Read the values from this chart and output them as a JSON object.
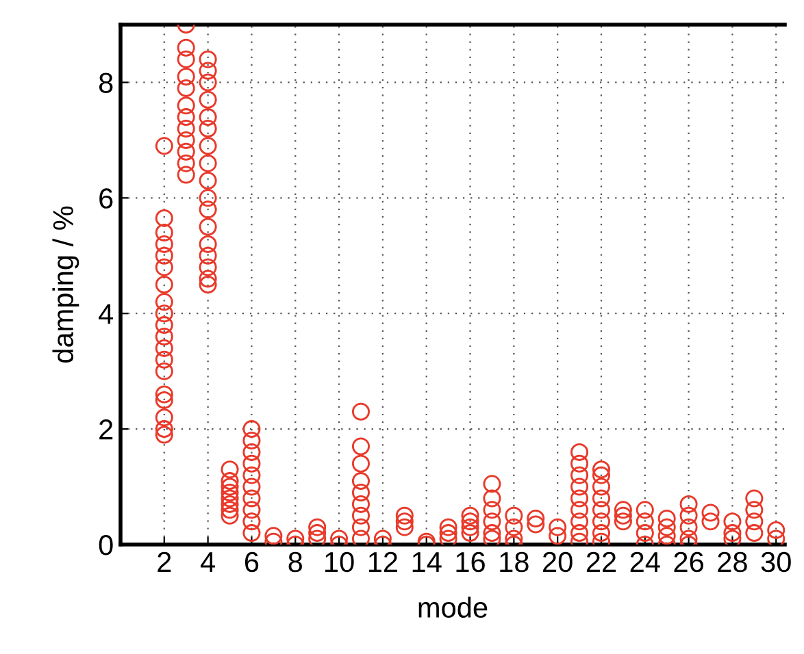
{
  "chart_data": {
    "type": "scatter",
    "xlabel": "mode",
    "ylabel": "damping / %",
    "xlim": [
      0,
      30.4
    ],
    "ylim": [
      0,
      9
    ],
    "xticks": [
      2,
      4,
      6,
      8,
      10,
      12,
      14,
      16,
      18,
      20,
      22,
      24,
      26,
      28,
      30
    ],
    "yticks": [
      0,
      2,
      4,
      6,
      8
    ],
    "grid": true,
    "marker": "circle",
    "legend": false,
    "series": [
      {
        "color": "#e8392a",
        "x": [
          2,
          2,
          2,
          2,
          2,
          2,
          2,
          2,
          2,
          2,
          2,
          2,
          2,
          2,
          2,
          2,
          2,
          2,
          2,
          3,
          3,
          3,
          3,
          3,
          3,
          3,
          3,
          3,
          3,
          3,
          3,
          4,
          4,
          4,
          4,
          4,
          4,
          4,
          4,
          4,
          4,
          4,
          4,
          4,
          4,
          4,
          4,
          4,
          5,
          5,
          5,
          5,
          5,
          5,
          5,
          5,
          6,
          6,
          6,
          6,
          6,
          6,
          6,
          6,
          6,
          6,
          7,
          7,
          8,
          8,
          9,
          9,
          9,
          10,
          10,
          11,
          11,
          11,
          11,
          11,
          11,
          11,
          11,
          11,
          12,
          12,
          13,
          13,
          13,
          14,
          14,
          15,
          15,
          15,
          16,
          16,
          16,
          16,
          17,
          17,
          17,
          17,
          17,
          17,
          18,
          18,
          18,
          18,
          19,
          19,
          20,
          20,
          21,
          21,
          21,
          21,
          21,
          21,
          21,
          21,
          21,
          22,
          22,
          22,
          22,
          22,
          22,
          22,
          22,
          23,
          23,
          23,
          24,
          24,
          24,
          24,
          25,
          25,
          25,
          25,
          26,
          26,
          26,
          26,
          26,
          27,
          27,
          28,
          28,
          28,
          29,
          29,
          29,
          29,
          30,
          30
        ],
        "values": [
          6.9,
          5.65,
          5.4,
          5.2,
          5.0,
          4.8,
          4.5,
          4.2,
          4.0,
          3.8,
          3.6,
          3.4,
          3.2,
          3.0,
          2.6,
          2.5,
          2.2,
          2.0,
          1.9,
          9.0,
          8.6,
          8.4,
          8.1,
          7.9,
          7.6,
          7.4,
          7.2,
          7.0,
          6.8,
          6.6,
          6.4,
          8.4,
          8.2,
          8.0,
          7.7,
          7.4,
          7.2,
          6.9,
          6.6,
          6.3,
          6.0,
          5.8,
          5.5,
          5.2,
          5.0,
          4.8,
          4.6,
          4.5,
          1.3,
          1.1,
          1.0,
          0.9,
          0.8,
          0.7,
          0.6,
          0.5,
          2.0,
          1.8,
          1.6,
          1.4,
          1.2,
          1.0,
          0.8,
          0.6,
          0.4,
          0.2,
          0.15,
          0.05,
          0.1,
          0.0,
          0.3,
          0.2,
          0.1,
          0.1,
          0.0,
          2.3,
          1.7,
          1.4,
          1.1,
          0.9,
          0.7,
          0.5,
          0.3,
          0.1,
          0.1,
          0.0,
          0.5,
          0.4,
          0.3,
          0.05,
          0.0,
          0.3,
          0.2,
          0.1,
          0.5,
          0.4,
          0.3,
          0.2,
          1.05,
          0.8,
          0.6,
          0.4,
          0.2,
          0.1,
          0.5,
          0.3,
          0.1,
          0.0,
          0.45,
          0.35,
          0.3,
          0.15,
          1.6,
          1.4,
          1.2,
          1.0,
          0.8,
          0.6,
          0.4,
          0.2,
          0.05,
          1.3,
          1.2,
          1.0,
          0.8,
          0.6,
          0.4,
          0.2,
          0.05,
          0.6,
          0.5,
          0.4,
          0.6,
          0.4,
          0.2,
          0.0,
          0.45,
          0.3,
          0.15,
          0.0,
          0.7,
          0.5,
          0.3,
          0.1,
          0.0,
          0.55,
          0.4,
          0.4,
          0.2,
          0.1,
          0.8,
          0.6,
          0.4,
          0.2,
          0.25,
          0.1
        ]
      }
    ]
  }
}
